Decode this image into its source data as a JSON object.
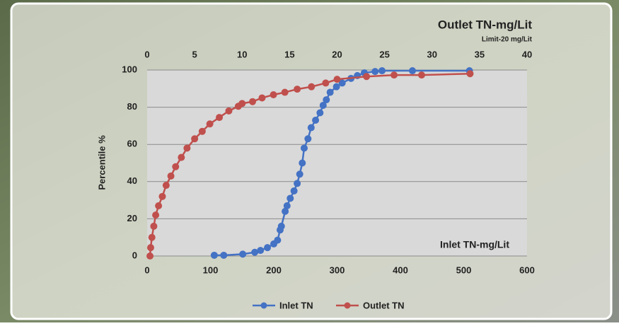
{
  "chart_data": {
    "type": "line",
    "y_label": "Percentile %",
    "x_label": "Inlet TN-mg/Lit",
    "x2_label": "Outlet TN-mg/Lit",
    "x2_sublabel": "Limit-20 mg/Lit",
    "xlim": [
      0,
      600
    ],
    "xticks": [
      0,
      100,
      200,
      300,
      400,
      500,
      600
    ],
    "x2lim": [
      0,
      40
    ],
    "x2ticks": [
      0,
      5,
      10,
      15,
      20,
      25,
      30,
      35,
      40
    ],
    "ylim": [
      0,
      100
    ],
    "yticks": [
      0,
      20,
      40,
      60,
      80,
      100
    ],
    "grid": true,
    "legend": "bottom",
    "series": [
      {
        "name": "Inlet TN",
        "color": "#4472c4",
        "x": [
          106,
          121,
          151,
          170,
          179,
          190,
          200,
          206,
          210,
          212,
          218,
          221,
          226,
          232,
          237,
          241,
          245,
          248,
          254,
          259,
          266,
          273,
          278,
          283,
          289,
          299,
          308,
          322,
          332,
          343,
          360,
          371,
          419,
          509
        ],
        "values": [
          0.4,
          0.4,
          1,
          2,
          3,
          4.5,
          6.5,
          8.5,
          14,
          16,
          24,
          27,
          31,
          35,
          39,
          44,
          50,
          58,
          63,
          69,
          73,
          77,
          81,
          84,
          88,
          91,
          93,
          95.5,
          97,
          98.5,
          99.2,
          99.6,
          99.6,
          99.6
        ]
      },
      {
        "name": "Outlet TN",
        "color": "#c0504d",
        "axis": "x2",
        "x": [
          0.3,
          0.37,
          0.5,
          0.7,
          0.9,
          1.2,
          1.6,
          2,
          2.5,
          3,
          3.6,
          4.2,
          5,
          5.8,
          6.6,
          7.6,
          8.6,
          9.6,
          10,
          11.1,
          12.1,
          13.3,
          14.5,
          15.8,
          17.3,
          18.8,
          20,
          23.1,
          26,
          28.9,
          34
        ],
        "values": [
          0,
          4.5,
          10,
          16,
          22,
          27,
          32,
          38,
          43,
          48,
          53,
          58,
          63,
          67,
          71,
          74.5,
          78,
          80.5,
          82,
          83,
          85,
          86.7,
          88,
          89.7,
          91,
          93,
          95,
          96.5,
          97.3,
          97.3,
          98
        ]
      }
    ]
  }
}
